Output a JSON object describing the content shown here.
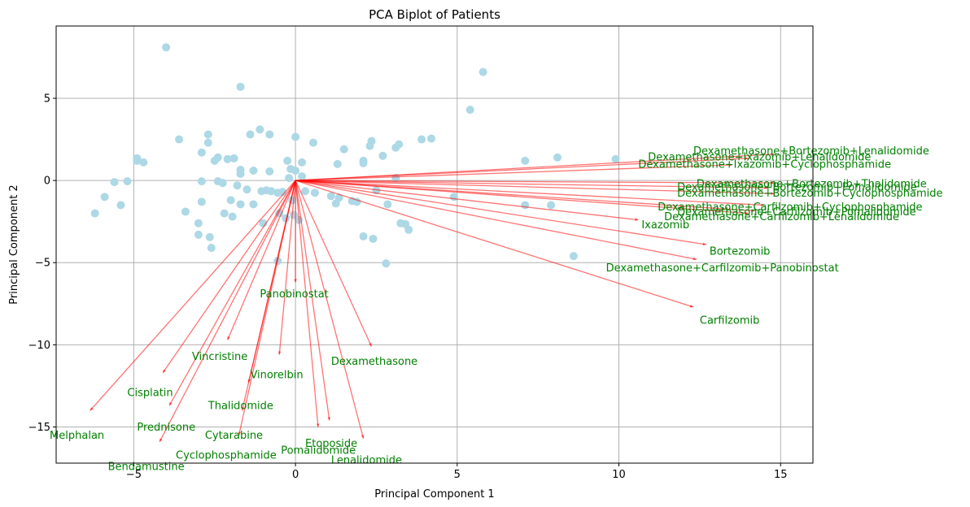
{
  "chart_data": {
    "type": "scatter",
    "title": "PCA Biplot of Patients",
    "xlabel": "Principal Component 1",
    "ylabel": "Principal Component 2",
    "xlim": [
      -7.4,
      16.0
    ],
    "ylim": [
      -17.2,
      9.4
    ],
    "xticks": [
      -5,
      0,
      5,
      10,
      15
    ],
    "yticks": [
      5,
      0,
      -5,
      -10,
      -15
    ],
    "grid": true,
    "colors": {
      "points": "#add8e6",
      "arrows": "#ff0000",
      "labels": "#008000"
    },
    "points": [
      [
        -4.0,
        8.1
      ],
      [
        -1.7,
        5.7
      ],
      [
        5.8,
        6.6
      ],
      [
        5.4,
        4.3
      ],
      [
        -3.6,
        2.5
      ],
      [
        -2.7,
        2.8
      ],
      [
        -2.7,
        2.3
      ],
      [
        -1.4,
        2.8
      ],
      [
        -1.1,
        3.1
      ],
      [
        -0.8,
        2.8
      ],
      [
        0.0,
        2.65
      ],
      [
        0.55,
        2.3
      ],
      [
        1.5,
        1.9
      ],
      [
        2.3,
        2.1
      ],
      [
        2.35,
        2.4
      ],
      [
        2.7,
        1.5
      ],
      [
        3.1,
        2.0
      ],
      [
        3.2,
        2.2
      ],
      [
        3.9,
        2.5
      ],
      [
        4.2,
        2.55
      ],
      [
        -4.9,
        1.35
      ],
      [
        -4.9,
        1.2
      ],
      [
        -4.7,
        1.1
      ],
      [
        -2.9,
        1.7
      ],
      [
        -2.5,
        1.2
      ],
      [
        -2.4,
        1.4
      ],
      [
        -2.1,
        1.3
      ],
      [
        -1.9,
        1.35
      ],
      [
        -1.7,
        0.65
      ],
      [
        -1.7,
        0.4
      ],
      [
        -1.3,
        0.6
      ],
      [
        -0.8,
        0.55
      ],
      [
        -0.25,
        1.2
      ],
      [
        -0.15,
        0.7
      ],
      [
        0.0,
        0.6
      ],
      [
        0.2,
        1.1
      ],
      [
        0.2,
        0.25
      ],
      [
        -0.2,
        0.15
      ],
      [
        1.3,
        1.0
      ],
      [
        2.1,
        1.2
      ],
      [
        2.1,
        1.05
      ],
      [
        3.1,
        0.15
      ],
      [
        -5.6,
        -0.1
      ],
      [
        -5.2,
        -0.05
      ],
      [
        -2.9,
        -0.05
      ],
      [
        -2.4,
        -0.05
      ],
      [
        -2.25,
        -0.15
      ],
      [
        -1.8,
        -0.3
      ],
      [
        -1.5,
        -0.55
      ],
      [
        -1.05,
        -0.65
      ],
      [
        -0.75,
        -0.65
      ],
      [
        -0.55,
        -0.75
      ],
      [
        -0.4,
        -0.7
      ],
      [
        0.3,
        -0.65
      ],
      [
        0.6,
        -0.75
      ],
      [
        1.1,
        -0.95
      ],
      [
        1.35,
        -1.05
      ],
      [
        2.5,
        -0.6
      ],
      [
        4.9,
        -1.0
      ],
      [
        -2.9,
        -1.3
      ],
      [
        -2.0,
        -1.2
      ],
      [
        -1.7,
        -1.45
      ],
      [
        -1.3,
        -1.45
      ],
      [
        -0.9,
        -0.6
      ],
      [
        -0.1,
        -1.2
      ],
      [
        1.25,
        -1.4
      ],
      [
        1.75,
        -1.25
      ],
      [
        1.9,
        -1.3
      ],
      [
        2.85,
        -1.45
      ],
      [
        -5.9,
        -1.0
      ],
      [
        -5.4,
        -1.5
      ],
      [
        -6.2,
        -2.0
      ],
      [
        -3.4,
        -1.9
      ],
      [
        -2.2,
        -2.0
      ],
      [
        -1.95,
        -2.2
      ],
      [
        -1.0,
        -2.6
      ],
      [
        -0.5,
        -2.0
      ],
      [
        -0.3,
        -2.3
      ],
      [
        -0.05,
        -2.1
      ],
      [
        0.1,
        -2.4
      ],
      [
        -3.0,
        -2.6
      ],
      [
        -3.0,
        -3.3
      ],
      [
        -2.65,
        -3.45
      ],
      [
        -2.6,
        -4.1
      ],
      [
        2.1,
        -3.4
      ],
      [
        2.4,
        -3.55
      ],
      [
        3.25,
        -2.6
      ],
      [
        3.4,
        -2.65
      ],
      [
        3.5,
        -3.0
      ],
      [
        -0.55,
        -4.9
      ],
      [
        2.8,
        -5.05
      ],
      [
        7.1,
        1.2
      ],
      [
        8.1,
        1.4
      ],
      [
        9.9,
        1.3
      ],
      [
        7.1,
        -1.5
      ],
      [
        7.9,
        -1.5
      ],
      [
        8.6,
        -4.6
      ]
    ],
    "loadings": [
      {
        "name": "Melphalan",
        "x": -6.35,
        "y": -14.0,
        "lx": -7.6,
        "ly": -15.5
      },
      {
        "name": "Bendamustine",
        "x": -4.2,
        "y": -15.9,
        "lx": -5.8,
        "ly": -17.4
      },
      {
        "name": "Prednisone",
        "x": -3.9,
        "y": -13.7,
        "lx": -4.9,
        "ly": -15.0
      },
      {
        "name": "Cisplatin",
        "x": -4.1,
        "y": -11.7,
        "lx": -5.2,
        "ly": -12.9
      },
      {
        "name": "Cyclophosphamide",
        "x": -1.75,
        "y": -15.5,
        "lx": -3.7,
        "ly": -16.7
      },
      {
        "name": "Cytarabine",
        "x": -1.65,
        "y": -14.0,
        "lx": -2.8,
        "ly": -15.5
      },
      {
        "name": "Thalidomide",
        "x": -1.45,
        "y": -12.3,
        "lx": -2.7,
        "ly": -13.7
      },
      {
        "name": "Vincristine",
        "x": -2.1,
        "y": -9.7,
        "lx": -3.2,
        "ly": -10.7
      },
      {
        "name": "Vinorelbin",
        "x": -0.5,
        "y": -10.6,
        "lx": -1.4,
        "ly": -11.8
      },
      {
        "name": "Panobinostat",
        "x": 0.0,
        "y": -6.2,
        "lx": -1.1,
        "ly": -6.9
      },
      {
        "name": "Pomalidomide",
        "x": 0.7,
        "y": -15.0,
        "lx": -0.45,
        "ly": -16.4
      },
      {
        "name": "Etoposide",
        "x": 1.05,
        "y": -14.6,
        "lx": 0.3,
        "ly": -16.0
      },
      {
        "name": "Lenalidomide",
        "x": 2.1,
        "y": -15.7,
        "lx": 1.1,
        "ly": -17.0
      },
      {
        "name": "Dexamethasone",
        "x": 2.35,
        "y": -10.1,
        "lx": 1.1,
        "ly": -11.0
      },
      {
        "name": "Carfilzomib",
        "x": 12.3,
        "y": -7.7,
        "lx": 12.5,
        "ly": -8.5
      },
      {
        "name": "Dexamethasone+Carfilzomib+Panobinostat",
        "x": 12.4,
        "y": -4.8,
        "lx": 9.6,
        "ly": -5.3
      },
      {
        "name": "Bortezomib",
        "x": 12.7,
        "y": -3.9,
        "lx": 12.8,
        "ly": -4.3
      },
      {
        "name": "Ixazomib",
        "x": 10.6,
        "y": -2.4,
        "lx": 10.7,
        "ly": -2.7
      },
      {
        "name": "Dexamethasone+Carfilzomib+Lenalidomide",
        "x": 14.0,
        "y": -2.0,
        "lx": 11.4,
        "ly": -2.2
      },
      {
        "name": "Dexamethasone+Carfilzomib+Pomalidomide",
        "x": 14.2,
        "y": -1.85,
        "lx": 11.8,
        "ly": -1.9
      },
      {
        "name": "Dexamethasone+Carfilzomib+Cyclophosphamide",
        "x": 14.5,
        "y": -1.5,
        "lx": 11.2,
        "ly": -1.6
      },
      {
        "name": "Dexamethasone+Bortezomib+Cyclophosphamide",
        "x": 14.8,
        "y": -0.8,
        "lx": 11.8,
        "ly": -0.75
      },
      {
        "name": "Dexamethasone+Bortezomib+Pomalidomide",
        "x": 14.6,
        "y": -0.45,
        "lx": 11.8,
        "ly": -0.4
      },
      {
        "name": "Dexamethasone+Bortezomib+Thalidomide",
        "x": 14.8,
        "y": -0.15,
        "lx": 12.4,
        "ly": -0.2
      },
      {
        "name": "Dexamethasone+Ixazomib+Cyclophosphamide",
        "x": 13.5,
        "y": 0.95,
        "lx": 10.6,
        "ly": 1.0
      },
      {
        "name": "Dexamethasone+Ixazomib+Lenalidomide",
        "x": 14.0,
        "y": 1.35,
        "lx": 10.9,
        "ly": 1.45
      },
      {
        "name": "Dexamethasone+Bortezomib+Lenalidomide",
        "x": 14.8,
        "y": 1.6,
        "lx": 12.3,
        "ly": 1.8
      }
    ]
  }
}
